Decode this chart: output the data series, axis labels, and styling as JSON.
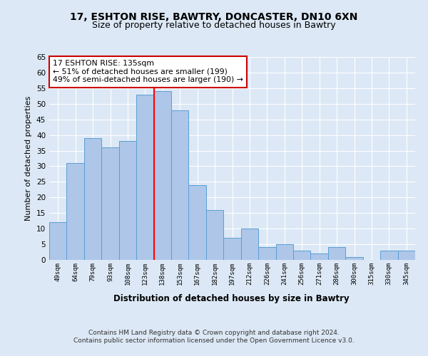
{
  "title1": "17, ESHTON RISE, BAWTRY, DONCASTER, DN10 6XN",
  "title2": "Size of property relative to detached houses in Bawtry",
  "xlabel": "Distribution of detached houses by size in Bawtry",
  "ylabel": "Number of detached properties",
  "bar_labels": [
    "49sqm",
    "64sqm",
    "79sqm",
    "93sqm",
    "108sqm",
    "123sqm",
    "138sqm",
    "153sqm",
    "167sqm",
    "182sqm",
    "197sqm",
    "212sqm",
    "226sqm",
    "241sqm",
    "256sqm",
    "271sqm",
    "286sqm",
    "300sqm",
    "315sqm",
    "330sqm",
    "345sqm"
  ],
  "bar_values": [
    12,
    31,
    39,
    36,
    38,
    53,
    54,
    48,
    24,
    16,
    7,
    10,
    4,
    5,
    3,
    2,
    4,
    1,
    0,
    3,
    3
  ],
  "bar_color": "#aec6e8",
  "bar_edge_color": "#5a9fd4",
  "red_line_index": 6,
  "annotation_text": "17 ESHTON RISE: 135sqm\n← 51% of detached houses are smaller (199)\n49% of semi-detached houses are larger (190) →",
  "annotation_box_color": "#ffffff",
  "annotation_box_edge": "#cc0000",
  "ylim": [
    0,
    65
  ],
  "yticks": [
    0,
    5,
    10,
    15,
    20,
    25,
    30,
    35,
    40,
    45,
    50,
    55,
    60,
    65
  ],
  "footer1": "Contains HM Land Registry data © Crown copyright and database right 2024.",
  "footer2": "Contains public sector information licensed under the Open Government Licence v3.0.",
  "bg_color": "#dce8f5",
  "plot_bg_color": "#dce8f5"
}
